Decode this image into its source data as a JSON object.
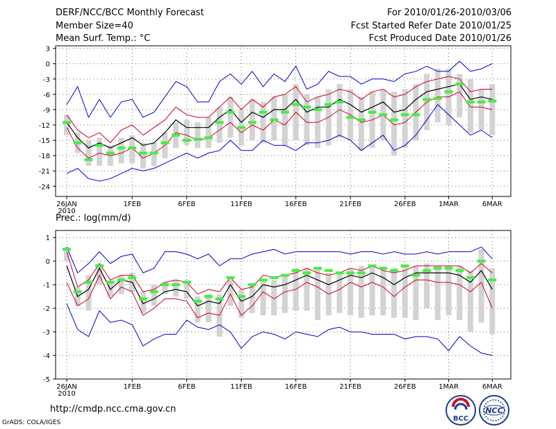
{
  "header": {
    "left_line1": "DERF/NCC/BCC Monthly Forecast",
    "left_line2": "Member Size=40",
    "left_line3": "Mean Surf. Temp.: °C",
    "right_line1": "For 2010/01/26-2010/03/06",
    "right_line2": "Fcst Started Refer Date 2010/01/25",
    "right_line3": "Fcst Produced Date 2010/01/26"
  },
  "footer": {
    "url": "http://cmdp.ncc.cma.gov.cn",
    "credit": "GrADS: COLA/IGES",
    "logo_bcc_text": "BCC",
    "logo_ncc_text": "NCC"
  },
  "colors": {
    "max_min": "#0000cc",
    "spread": "#cc0022",
    "mean": "#000000",
    "box": "#d3d3d3",
    "marker": "#44ee44",
    "grid": "#666666"
  },
  "chart_data": [
    {
      "type": "line",
      "title": "Mean Surf. Temp.: °C",
      "unit": "°C",
      "day_index": [
        0,
        1,
        2,
        3,
        4,
        5,
        6,
        7,
        8,
        9,
        10,
        11,
        12,
        13,
        14,
        15,
        16,
        17,
        18,
        19,
        20,
        21,
        22,
        23,
        24,
        25,
        26,
        27,
        28,
        29,
        30,
        31,
        32,
        33,
        34,
        35,
        36,
        37,
        38,
        39
      ],
      "xtick_days": [
        0,
        6,
        11,
        16,
        21,
        26,
        31,
        35,
        39
      ],
      "xtick_labels": [
        "26JAN",
        "1FEB",
        "6FEB",
        "11FEB",
        "16FEB",
        "21FEB",
        "26FEB",
        "1MAR",
        "6MAR"
      ],
      "x_sublabel": "2010",
      "ylim": [
        -26,
        3.5
      ],
      "yticks": [
        3,
        0,
        -3,
        -6,
        -9,
        -12,
        -15,
        -18,
        -21,
        -24
      ],
      "grid": true,
      "series": [
        {
          "name": "max",
          "values": [
            -21.5,
            -20.5,
            -22.5,
            -23,
            -22.5,
            -21.5,
            -20.5,
            -21,
            -20.5,
            -19.5,
            -18.5,
            -17.5,
            -18.5,
            -17.5,
            -17,
            -15,
            -17,
            -17,
            -15,
            -16,
            -16,
            -17,
            -15.5,
            -15.5,
            -15,
            -14,
            -15,
            -17,
            -15.5,
            -14,
            -17,
            -16,
            -14,
            -11,
            -8,
            -10,
            -12,
            -14,
            -13,
            -14.5
          ]
        },
        {
          "name": "min",
          "values": [
            -8,
            -4.5,
            -10.5,
            -7,
            -10.5,
            -7.5,
            -7,
            -10.5,
            -9.5,
            -6.5,
            -3.5,
            -4.5,
            -7.5,
            -7.5,
            -3.5,
            -2,
            -4,
            -1.5,
            -4.5,
            -2,
            -3.5,
            -0.5,
            -5,
            -4,
            -1.5,
            -2.5,
            -2.5,
            -4,
            -3,
            -3,
            -3.5,
            -2,
            -1.5,
            -0.5,
            -1.5,
            -1.5,
            0.5,
            -1.5,
            -1,
            0
          ]
        },
        {
          "name": "spread_upper",
          "values": [
            -10,
            -13,
            -14.5,
            -13.5,
            -15.5,
            -13,
            -12,
            -14,
            -12.5,
            -11,
            -8.5,
            -10,
            -10.5,
            -10.5,
            -8.5,
            -6.5,
            -9,
            -7,
            -8.5,
            -6.5,
            -6,
            -4.5,
            -7.5,
            -6.5,
            -6,
            -5,
            -5.5,
            -7,
            -5.5,
            -5,
            -6.5,
            -6,
            -4.5,
            -3.5,
            -3,
            -2.5,
            -3,
            -5.5,
            -5,
            -5
          ]
        },
        {
          "name": "spread_lower",
          "values": [
            -12.5,
            -16.5,
            -18.5,
            -17.5,
            -18,
            -17.5,
            -16.5,
            -18.5,
            -17.5,
            -16,
            -13.5,
            -14,
            -15,
            -14.5,
            -13,
            -11.5,
            -13.5,
            -12,
            -13,
            -11,
            -12,
            -9.5,
            -11.5,
            -11.5,
            -10.5,
            -9,
            -10,
            -11.5,
            -11,
            -10,
            -12,
            -11.5,
            -9.5,
            -7.5,
            -6.5,
            -6.5,
            -5.5,
            -8.5,
            -8.5,
            -9
          ]
        },
        {
          "name": "mean",
          "values": [
            -11.5,
            -14.5,
            -16.5,
            -15.5,
            -16.5,
            -15.5,
            -14.5,
            -16,
            -15.5,
            -13.5,
            -11,
            -12.5,
            -12.5,
            -12.5,
            -10.5,
            -9,
            -11.5,
            -9.5,
            -10.5,
            -9,
            -9,
            -7,
            -9.5,
            -8.5,
            -8.5,
            -7,
            -8,
            -9.5,
            -8.5,
            -7.5,
            -9.5,
            -9,
            -7,
            -5.5,
            -5,
            -4.5,
            -4,
            -7,
            -6.5,
            -7
          ]
        },
        {
          "name": "observed",
          "values": [
            -11.5,
            -15.5,
            -18.8,
            -16,
            -17.5,
            -16.5,
            -16.5,
            -17.5,
            -17.5,
            -15.5,
            -14,
            -15,
            -14.8,
            -14.5,
            -11.5,
            -9.5,
            -12.5,
            -11.5,
            -9.5,
            -11,
            -9.5,
            -8,
            -8.5,
            -9,
            -8,
            -7.5,
            -10.5,
            -11,
            -9.5,
            -10,
            -11,
            -10,
            -10,
            -7,
            -6.8,
            -5.5,
            -4,
            -7.5,
            -7.5,
            -7.3
          ]
        }
      ],
      "boxes": [
        {
          "day": 0,
          "low": -14,
          "high": -10
        },
        {
          "day": 1,
          "low": -17.5,
          "high": -13.5
        },
        {
          "day": 2,
          "low": -20,
          "high": -15
        },
        {
          "day": 3,
          "low": -20,
          "high": -14.5
        },
        {
          "day": 4,
          "low": -20,
          "high": -16
        },
        {
          "day": 5,
          "low": -19.5,
          "high": -14.5
        },
        {
          "day": 6,
          "low": -19.5,
          "high": -14
        },
        {
          "day": 7,
          "low": -20.5,
          "high": -15.5
        },
        {
          "day": 8,
          "low": -20,
          "high": -15.5
        },
        {
          "day": 9,
          "low": -18.5,
          "high": -13.5
        },
        {
          "day": 10,
          "low": -16.5,
          "high": -11.5
        },
        {
          "day": 11,
          "low": -16,
          "high": -11
        },
        {
          "day": 12,
          "low": -16.5,
          "high": -11.5
        },
        {
          "day": 13,
          "low": -16.5,
          "high": -10.5
        },
        {
          "day": 14,
          "low": -15.5,
          "high": -8.5
        },
        {
          "day": 15,
          "low": -14.5,
          "high": -6.5
        },
        {
          "day": 16,
          "low": -16,
          "high": -9
        },
        {
          "day": 17,
          "low": -15,
          "high": -7
        },
        {
          "day": 18,
          "low": -15.5,
          "high": -7.5
        },
        {
          "day": 19,
          "low": -15,
          "high": -6.5
        },
        {
          "day": 20,
          "low": -16,
          "high": -6
        },
        {
          "day": 21,
          "low": -15,
          "high": -4
        },
        {
          "day": 22,
          "low": -16,
          "high": -6
        },
        {
          "day": 23,
          "low": -16.5,
          "high": -6.5
        },
        {
          "day": 24,
          "low": -16,
          "high": -5
        },
        {
          "day": 25,
          "low": -14.5,
          "high": -4
        },
        {
          "day": 26,
          "low": -15,
          "high": -5
        },
        {
          "day": 27,
          "low": -17,
          "high": -6.5
        },
        {
          "day": 28,
          "low": -16.5,
          "high": -5.5
        },
        {
          "day": 29,
          "low": -15,
          "high": -5
        },
        {
          "day": 30,
          "low": -18,
          "high": -5.5
        },
        {
          "day": 31,
          "low": -16.5,
          "high": -5
        },
        {
          "day": 32,
          "low": -15,
          "high": -4
        },
        {
          "day": 33,
          "low": -13,
          "high": -2
        },
        {
          "day": 34,
          "low": -11.5,
          "high": -1
        },
        {
          "day": 35,
          "low": -12,
          "high": -1
        },
        {
          "day": 36,
          "low": -10.5,
          "high": -2
        },
        {
          "day": 37,
          "low": -13.5,
          "high": -3
        },
        {
          "day": 38,
          "low": -13,
          "high": -5
        },
        {
          "day": 39,
          "low": -14,
          "high": -4
        }
      ]
    },
    {
      "type": "line",
      "title": "Prec.: log(mm/d)",
      "unit": "log(mm/d)",
      "day_index": [
        0,
        1,
        2,
        3,
        4,
        5,
        6,
        7,
        8,
        9,
        10,
        11,
        12,
        13,
        14,
        15,
        16,
        17,
        18,
        19,
        20,
        21,
        22,
        23,
        24,
        25,
        26,
        27,
        28,
        29,
        30,
        31,
        32,
        33,
        34,
        35,
        36,
        37,
        38,
        39
      ],
      "xtick_days": [
        0,
        6,
        11,
        16,
        21,
        26,
        31,
        35,
        39
      ],
      "xtick_labels": [
        "26JAN",
        "1FEB",
        "6FEB",
        "11FEB",
        "16FEB",
        "21FEB",
        "26FEB",
        "1MAR",
        "6MAR"
      ],
      "x_sublabel": "2010",
      "ylim": [
        -5,
        1.3
      ],
      "yticks": [
        1,
        0,
        -1,
        -2,
        -3,
        -4,
        -5
      ],
      "grid": true,
      "series": [
        {
          "name": "max",
          "values": [
            0.6,
            -0.5,
            -0.1,
            0.4,
            -0.1,
            0.2,
            0.3,
            -0.5,
            -0.3,
            0.4,
            0.4,
            0.3,
            0.1,
            0.3,
            -0.2,
            0.1,
            0.1,
            0.3,
            0.4,
            0.5,
            0.3,
            0.4,
            0.4,
            0.4,
            0.4,
            0.4,
            0.3,
            0.4,
            0.4,
            0.3,
            0.4,
            0.3,
            0.3,
            0.4,
            0.3,
            0.4,
            0.4,
            0.4,
            0.6,
            0.1
          ]
        },
        {
          "name": "min",
          "values": [
            -1.8,
            -2.9,
            -3.2,
            -2.1,
            -2.6,
            -2.5,
            -2.7,
            -3.6,
            -3.3,
            -3.1,
            -3.1,
            -2.5,
            -2.8,
            -2.9,
            -2.7,
            -3.0,
            -3.7,
            -3.2,
            -3.0,
            -3.1,
            -3.3,
            -3.0,
            -3.1,
            -3.2,
            -2.9,
            -2.8,
            -3.0,
            -3.0,
            -3.1,
            -3.1,
            -3.1,
            -3.3,
            -3.2,
            -3.2,
            -3.3,
            -3.8,
            -3.2,
            -3.6,
            -3.9,
            -4.0
          ]
        },
        {
          "name": "spread_upper",
          "values": [
            0.4,
            -1.1,
            -0.8,
            -0.1,
            -0.8,
            -0.6,
            -0.6,
            -1.3,
            -1.2,
            -0.9,
            -0.8,
            -0.9,
            -1.4,
            -1.2,
            -1.3,
            -0.7,
            -1.2,
            -1.1,
            -0.6,
            -0.7,
            -0.6,
            -0.5,
            -0.3,
            -0.5,
            -0.6,
            -0.5,
            -0.3,
            -0.4,
            -0.2,
            -0.4,
            -0.5,
            -0.4,
            -0.2,
            -0.2,
            -0.2,
            -0.2,
            -0.2,
            -0.5,
            -0.1,
            -0.5
          ]
        },
        {
          "name": "spread_lower",
          "values": [
            -0.9,
            -1.9,
            -1.6,
            -0.6,
            -1.6,
            -1.1,
            -1.3,
            -2.3,
            -2.0,
            -1.6,
            -1.6,
            -1.7,
            -2.4,
            -2.2,
            -2.3,
            -1.4,
            -2.3,
            -1.9,
            -1.3,
            -1.6,
            -1.3,
            -1.2,
            -0.9,
            -1.1,
            -1.4,
            -1.2,
            -0.9,
            -1.1,
            -0.9,
            -1.1,
            -1.5,
            -1.1,
            -0.8,
            -0.8,
            -0.9,
            -0.9,
            -1.0,
            -1.3,
            -0.9,
            -2.0
          ]
        },
        {
          "name": "mean",
          "values": [
            -0.2,
            -1.5,
            -1.2,
            -0.3,
            -1.2,
            -0.8,
            -0.9,
            -1.8,
            -1.6,
            -1.3,
            -1.2,
            -1.3,
            -1.9,
            -1.7,
            -1.8,
            -1.0,
            -1.7,
            -1.5,
            -1.0,
            -1.1,
            -1.0,
            -0.8,
            -0.6,
            -0.8,
            -1.0,
            -0.8,
            -0.6,
            -0.7,
            -0.5,
            -0.7,
            -1.0,
            -0.7,
            -0.5,
            -0.5,
            -0.5,
            -0.5,
            -0.6,
            -0.9,
            -0.4,
            -1.2
          ]
        },
        {
          "name": "observed",
          "values": [
            0.5,
            -1.3,
            -0.9,
            -0.2,
            -0.9,
            -0.8,
            -0.7,
            -1.6,
            -1.3,
            -1.0,
            -1.0,
            -0.9,
            -1.7,
            -1.5,
            -1.6,
            -0.7,
            -1.5,
            -1.0,
            -0.8,
            -0.7,
            -0.6,
            -0.4,
            -0.5,
            -0.3,
            -0.4,
            -0.5,
            -0.5,
            -0.5,
            -0.2,
            -0.3,
            -0.4,
            -0.2,
            -0.6,
            -0.4,
            -0.3,
            -0.3,
            -0.4,
            -0.7,
            0.0,
            -0.8
          ]
        }
      ],
      "boxes": [
        {
          "day": 0,
          "low": 0.0,
          "high": 0.6
        },
        {
          "day": 1,
          "low": -1.9,
          "high": -1.1
        },
        {
          "day": 2,
          "low": -2.1,
          "high": -0.6
        },
        {
          "day": 3,
          "low": -1.0,
          "high": -0.1
        },
        {
          "day": 4,
          "low": -1.5,
          "high": -0.8
        },
        {
          "day": 5,
          "low": -1.4,
          "high": -0.6
        },
        {
          "day": 6,
          "low": -1.3,
          "high": -0.5
        },
        {
          "day": 7,
          "low": -2.2,
          "high": -1.3
        },
        {
          "day": 8,
          "low": -1.9,
          "high": -1.0
        },
        {
          "day": 9,
          "low": -1.4,
          "high": -0.9
        },
        {
          "day": 10,
          "low": -1.5,
          "high": -0.8
        },
        {
          "day": 11,
          "low": -1.6,
          "high": -0.8
        },
        {
          "day": 12,
          "low": -2.6,
          "high": -1.5
        },
        {
          "day": 13,
          "low": -2.6,
          "high": -1.4
        },
        {
          "day": 14,
          "low": -3.2,
          "high": -1.4
        },
        {
          "day": 15,
          "low": -1.9,
          "high": -0.8
        },
        {
          "day": 16,
          "low": -2.4,
          "high": -1.2
        },
        {
          "day": 17,
          "low": -2.2,
          "high": -1.0
        },
        {
          "day": 18,
          "low": -2.3,
          "high": -0.8
        },
        {
          "day": 19,
          "low": -2.3,
          "high": -0.8
        },
        {
          "day": 20,
          "low": -2.2,
          "high": -0.6
        },
        {
          "day": 21,
          "low": -2.1,
          "high": -0.3
        },
        {
          "day": 22,
          "low": -2.1,
          "high": -0.3
        },
        {
          "day": 23,
          "low": -2.5,
          "high": -0.3
        },
        {
          "day": 24,
          "low": -2.3,
          "high": -0.5
        },
        {
          "day": 25,
          "low": -2.2,
          "high": -0.5
        },
        {
          "day": 26,
          "low": -2.3,
          "high": -0.3
        },
        {
          "day": 27,
          "low": -2.4,
          "high": -0.2
        },
        {
          "day": 28,
          "low": -2.3,
          "high": -0.2
        },
        {
          "day": 29,
          "low": -2.3,
          "high": -0.3
        },
        {
          "day": 30,
          "low": -2.4,
          "high": -0.3
        },
        {
          "day": 31,
          "low": -2.4,
          "high": -0.2
        },
        {
          "day": 32,
          "low": -2.5,
          "high": -0.2
        },
        {
          "day": 33,
          "low": -2.0,
          "high": -0.1
        },
        {
          "day": 34,
          "low": -2.5,
          "high": -0.2
        },
        {
          "day": 35,
          "low": -2.3,
          "high": -0.2
        },
        {
          "day": 36,
          "low": -2.5,
          "high": -0.2
        },
        {
          "day": 37,
          "low": -3.0,
          "high": -0.4
        },
        {
          "day": 38,
          "low": -2.6,
          "high": 0.5
        },
        {
          "day": 39,
          "low": -3.1,
          "high": -0.3
        }
      ]
    }
  ]
}
